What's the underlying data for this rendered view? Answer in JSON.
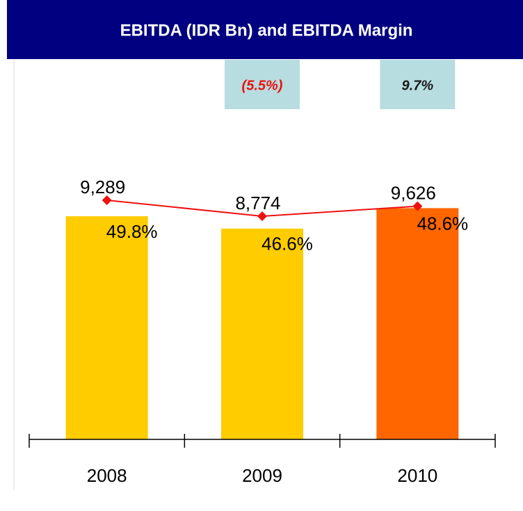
{
  "chart_data": {
    "type": "bar_line",
    "title": "EBITDA (IDR Bn) and EBITDA Margin",
    "categories": [
      "2008",
      "2009",
      "2010"
    ],
    "series": [
      {
        "name": "EBITDA",
        "type": "bar",
        "colors": [
          "#ffcc00",
          "#ffcc00",
          "#ff6600"
        ],
        "values": [
          9289,
          8774,
          9626
        ],
        "value_labels": [
          "9,289",
          "8,774",
          "9,626"
        ]
      },
      {
        "name": "EBITDA Margin",
        "type": "line",
        "axis": "y2",
        "color": "#ee1111",
        "values": [
          49.8,
          46.6,
          48.6
        ],
        "value_labels": [
          "49.8%",
          "46.6%",
          "48.6%"
        ]
      }
    ],
    "growth_labels": [
      null,
      "(5.5%)",
      "9.7%"
    ],
    "growth_colors": [
      null,
      "#ee1111",
      "#1a1a1a"
    ],
    "ylim": [
      0,
      15830
    ],
    "y2lim": [
      2,
      78
    ]
  }
}
